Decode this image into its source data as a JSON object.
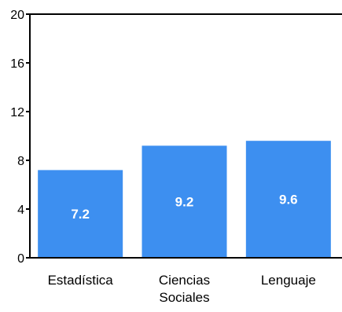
{
  "chart_data": {
    "type": "bar",
    "categories": [
      [
        "Estadística"
      ],
      [
        "Ciencias",
        "Sociales"
      ],
      [
        "Lenguaje"
      ]
    ],
    "values": [
      7.2,
      9.2,
      9.6
    ],
    "data_labels": [
      "7.2",
      "9.2",
      "9.6"
    ],
    "yticks": [
      "0",
      "4",
      "8",
      "12",
      "16",
      "20"
    ],
    "ylim": [
      0,
      20
    ],
    "grid": false,
    "legend": "none",
    "bar_color": "#3d8ff0",
    "axis_color": "#000000"
  }
}
